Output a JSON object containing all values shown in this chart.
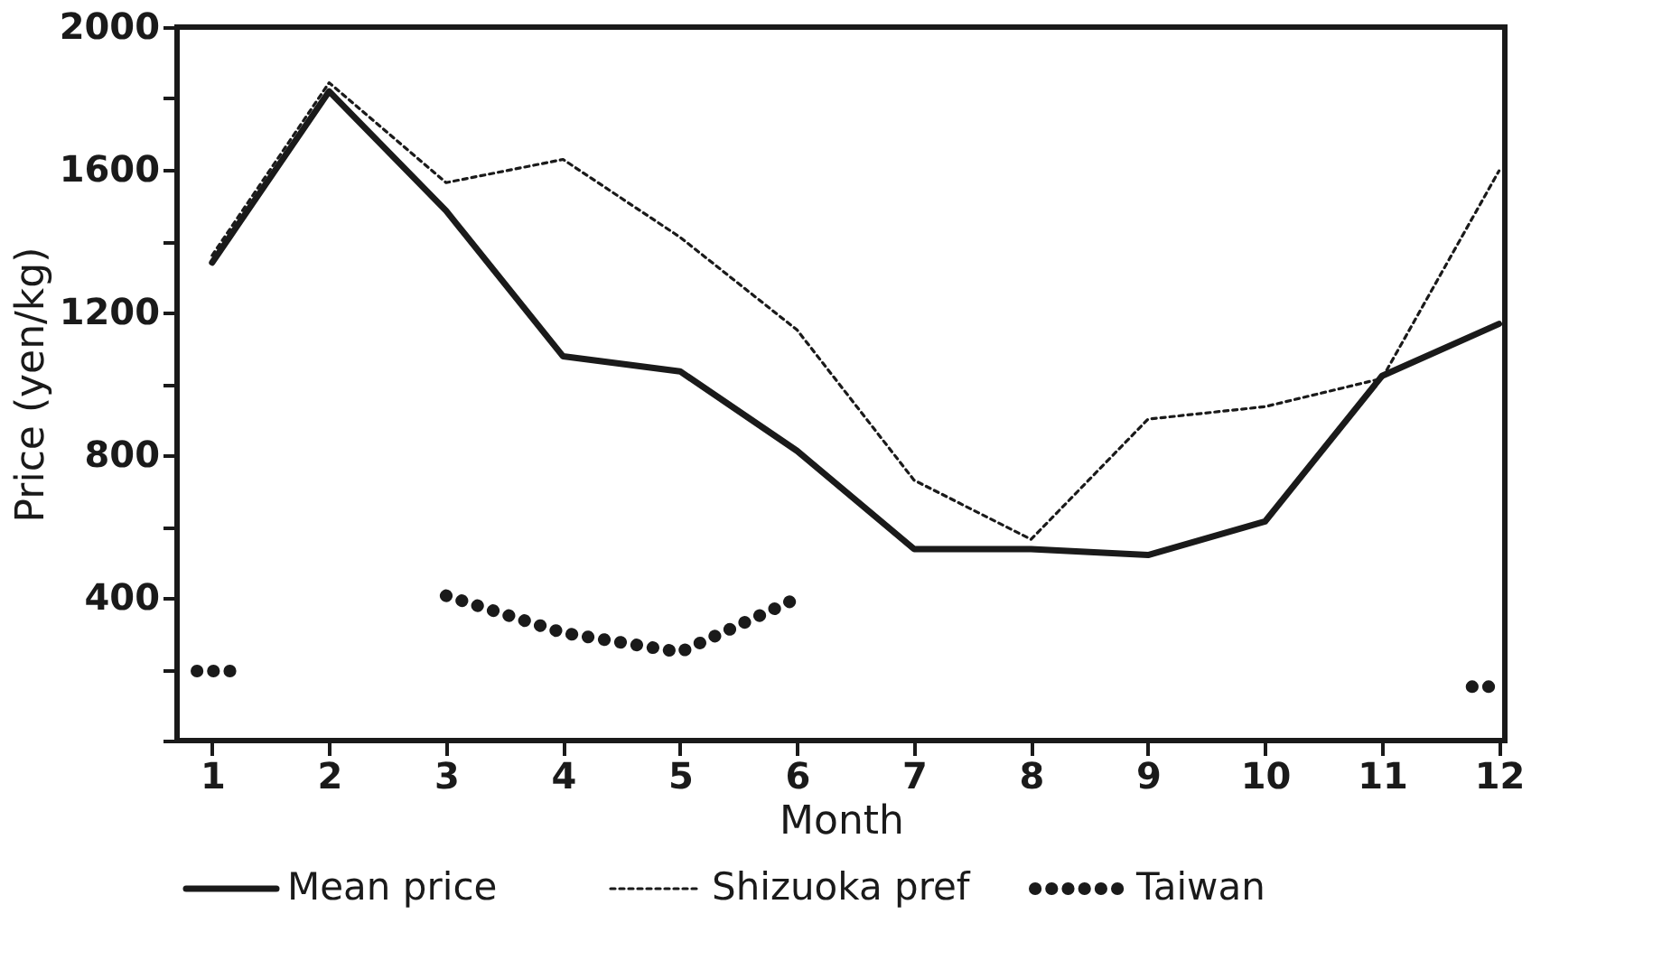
{
  "chart_data": {
    "type": "line",
    "xlabel": "Month",
    "ylabel": "Price (yen/kg)",
    "x": [
      1,
      2,
      3,
      4,
      5,
      6,
      7,
      8,
      9,
      10,
      11,
      12
    ],
    "series": [
      {
        "name": "Mean price",
        "color": "#1a1a1a",
        "line_style": "solid",
        "values": [
          1340,
          1820,
          1485,
          1077,
          1035,
          812,
          537,
          537,
          520,
          614,
          1022,
          1168
        ]
      },
      {
        "name": "Shizuoka pref",
        "color": "#1a1a1a",
        "line_style": "dashed",
        "values": [
          1360,
          1844,
          1564,
          1629,
          1411,
          1151,
          730,
          564,
          901,
          936,
          1015,
          1597
        ]
      },
      {
        "name": "Taiwan",
        "color": "#1a1a1a",
        "line_style": "dotted",
        "x": [
          0.87,
          1.23,
          2,
          3,
          4,
          5,
          5.95,
          7,
          11.77,
          12
        ],
        "values": [
          195,
          195,
          null,
          406,
          302,
          248,
          391,
          null,
          151,
          151
        ]
      }
    ],
    "xlim": [
      0.7,
      12.05
    ],
    "xticks": [
      1,
      2,
      3,
      4,
      5,
      6,
      7,
      8,
      9,
      10,
      11,
      12
    ],
    "ylim": [
      0,
      2000
    ],
    "yticks": [
      {
        "value": 0,
        "label": null
      },
      {
        "value": 200,
        "label": null
      },
      400,
      {
        "value": 600,
        "label": null
      },
      800,
      {
        "value": 1000,
        "label": null
      },
      1200,
      {
        "value": 1400,
        "label": null
      },
      1600,
      {
        "value": 1800,
        "label": null
      },
      2000
    ],
    "grid": false,
    "legend": "bottom"
  }
}
